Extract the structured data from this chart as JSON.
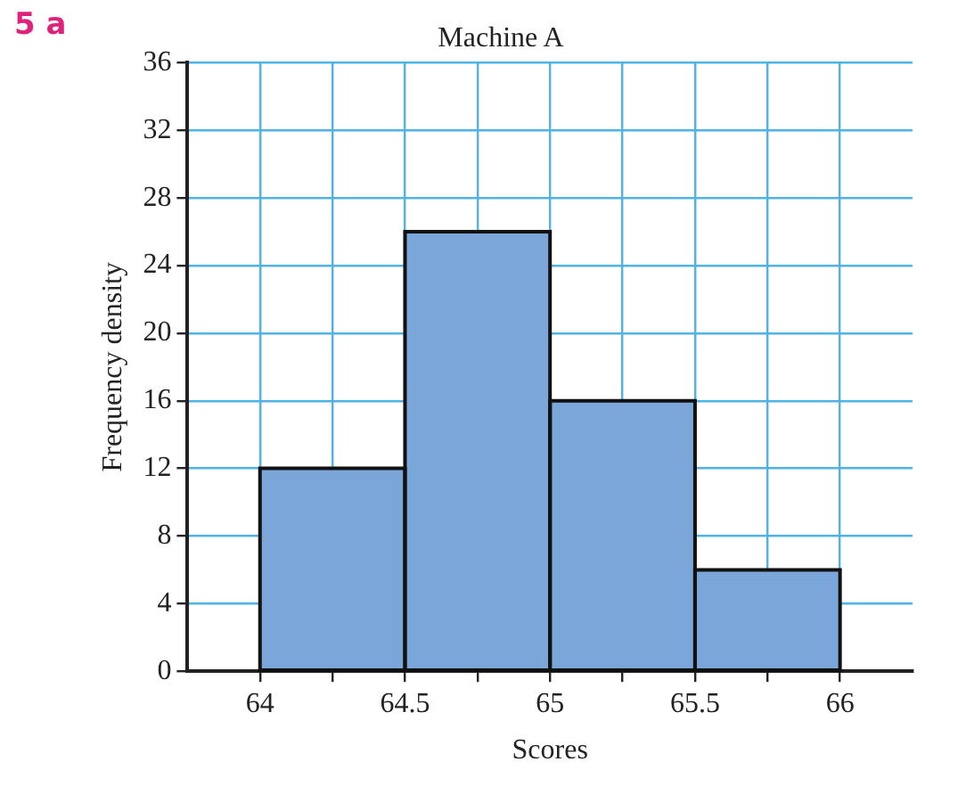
{
  "chart_data": {
    "type": "histogram",
    "title": "Machine A",
    "xlabel": "Scores",
    "ylabel": "Frequency density",
    "annotations": [
      "5 a"
    ],
    "bins": [
      64,
      64.5,
      65,
      65.5,
      66
    ],
    "values": [
      12,
      26,
      16,
      6
    ],
    "color": "#7ba6da",
    "xlim": [
      63.75,
      66.25
    ],
    "xticks": [
      64,
      {
        "value": 64.25,
        "label": null
      },
      64.5,
      {
        "value": 64.75,
        "label": null
      },
      65,
      {
        "value": 65.25,
        "label": null
      },
      65.5,
      {
        "value": 65.75,
        "label": null
      },
      66
    ],
    "ylim": [
      0,
      36
    ],
    "yticks": [
      0,
      4,
      8,
      12,
      16,
      20,
      24,
      28,
      32,
      36
    ],
    "grid": true,
    "legend": false
  }
}
